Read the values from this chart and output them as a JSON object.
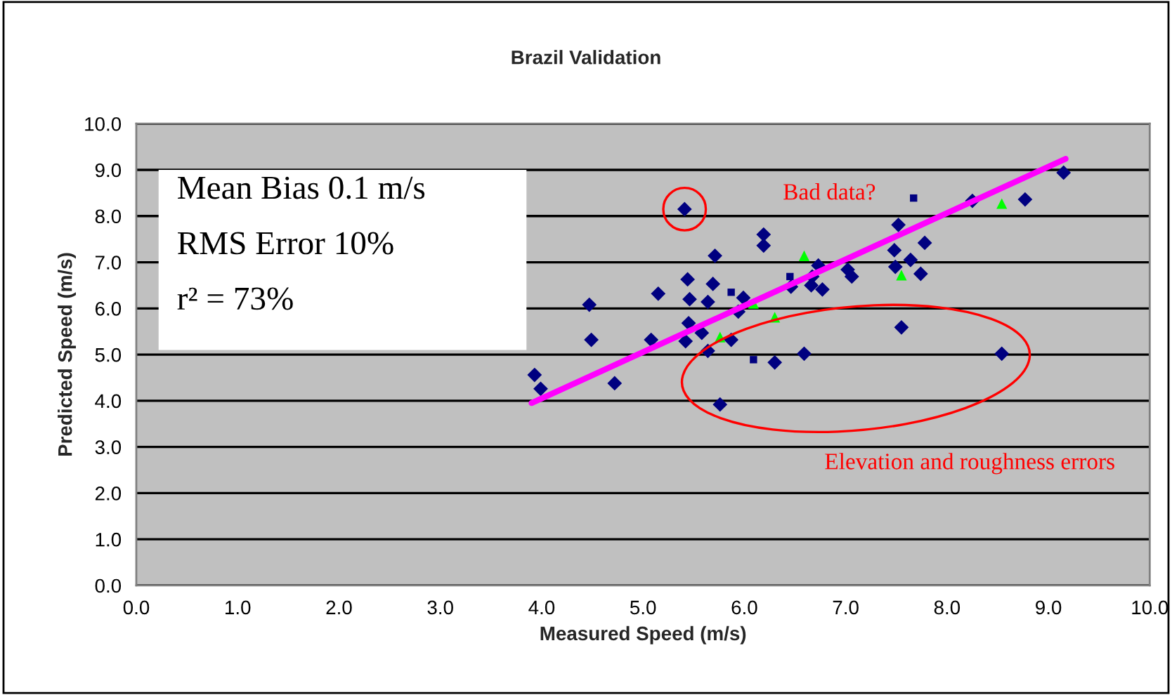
{
  "chart_data": {
    "type": "scatter",
    "title": "Brazil Validation",
    "xlabel": "Measured Speed (m/s)",
    "ylabel": "Predicted Speed (m/s)",
    "xlim": [
      0,
      10
    ],
    "ylim": [
      0,
      10
    ],
    "xticks": [
      {
        "value": 0,
        "label": "0.0"
      },
      {
        "value": 1,
        "label": "1.0"
      },
      {
        "value": 2,
        "label": "2.0"
      },
      {
        "value": 3,
        "label": "3.0"
      },
      {
        "value": 4,
        "label": "4.0"
      },
      {
        "value": 5,
        "label": "5.0"
      },
      {
        "value": 6,
        "label": "6.0"
      },
      {
        "value": 7,
        "label": "7.0"
      },
      {
        "value": 8,
        "label": "8.0"
      },
      {
        "value": 9,
        "label": "9.0"
      },
      {
        "value": 10,
        "label": "10.0"
      }
    ],
    "yticks": [
      {
        "value": 0,
        "label": "0.0"
      },
      {
        "value": 1,
        "label": "1.0"
      },
      {
        "value": 2,
        "label": "2.0"
      },
      {
        "value": 3,
        "label": "3.0"
      },
      {
        "value": 4,
        "label": "4.0"
      },
      {
        "value": 5,
        "label": "5.0"
      },
      {
        "value": 6,
        "label": "6.0"
      },
      {
        "value": 7,
        "label": "7.0"
      },
      {
        "value": 8,
        "label": "8.0"
      },
      {
        "value": 9,
        "label": "9.0"
      },
      {
        "value": 10,
        "label": "10.0"
      }
    ],
    "grid": "y",
    "legend": false,
    "series": [
      {
        "type": "scatter",
        "marker": "diamond",
        "color": "#000080",
        "x": [
          3.93,
          3.99,
          4.47,
          4.49,
          4.72,
          5.15,
          5.08,
          5.41,
          5.44,
          5.46,
          5.45,
          5.42,
          5.58,
          5.64,
          5.69,
          5.71,
          5.64,
          5.76,
          5.87,
          5.94,
          5.99,
          6.19,
          6.19,
          6.3,
          6.59,
          6.46,
          6.66,
          6.77,
          6.67,
          6.73,
          7.02,
          7.06,
          9.15,
          8.25,
          8.77,
          7.52,
          7.78,
          7.48,
          7.64,
          7.49,
          7.74,
          7.55,
          8.54
        ],
        "values": [
          4.56,
          4.26,
          6.08,
          5.32,
          4.38,
          6.32,
          5.32,
          8.15,
          6.63,
          6.2,
          5.68,
          5.29,
          5.47,
          6.14,
          6.53,
          7.14,
          5.08,
          3.92,
          5.32,
          5.93,
          6.23,
          7.6,
          7.36,
          4.83,
          5.02,
          6.47,
          6.5,
          6.41,
          6.69,
          6.93,
          6.84,
          6.69,
          8.94,
          8.33,
          8.36,
          7.81,
          7.42,
          7.26,
          7.05,
          6.9,
          6.75,
          5.59,
          5.02
        ]
      },
      {
        "type": "scatter",
        "marker": "triangle",
        "color": "#00ff00",
        "x": [
          5.76,
          6.09,
          6.3,
          6.59,
          8.54,
          7.55
        ],
        "values": [
          5.38,
          6.11,
          5.81,
          7.14,
          8.27,
          6.72
        ]
      },
      {
        "type": "scatter",
        "marker": "square",
        "color": "#000080",
        "x": [
          5.87,
          6.09,
          6.45,
          7.67
        ],
        "values": [
          6.35,
          4.89,
          6.69,
          8.39
        ]
      },
      {
        "type": "line",
        "color": "#ff00ff",
        "x": [
          3.9,
          9.17
        ],
        "values": [
          3.95,
          9.24
        ]
      }
    ],
    "annotations": [
      "Mean Bias 0.1 m/s",
      "RMS Error 10%",
      "r² = 73%",
      "Bad data?",
      "Elevation and roughness errors"
    ]
  }
}
